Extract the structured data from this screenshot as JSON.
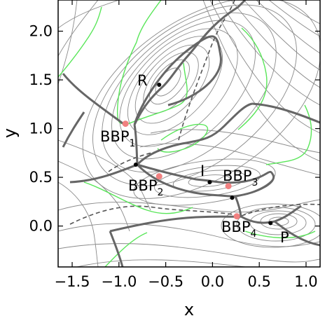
{
  "chart_data": {
    "type": "contour",
    "xlabel": "x",
    "ylabel": "y",
    "xlim": [
      -1.65,
      1.15
    ],
    "ylim": [
      -0.42,
      2.32
    ],
    "x_ticks": [
      "−1.5",
      "−1.0",
      "−0.5",
      "0.0",
      "0.5",
      "1.0"
    ],
    "x_tick_values": [
      -1.5,
      -1.0,
      -0.5,
      0.0,
      0.5,
      1.0
    ],
    "y_ticks": [
      "0.0",
      "0.5",
      "1.0",
      "1.5",
      "2.0"
    ],
    "y_tick_values": [
      0.0,
      0.5,
      1.0,
      1.5,
      2.0
    ],
    "colors": {
      "contour": "#8a8a8a",
      "thick_path": "#666666",
      "dashed_curve": "#555555",
      "green_curve": "#59e659",
      "stationary_point": "#000000",
      "bbp_point": "#f08080"
    },
    "black_points": [
      {
        "label": "R",
        "x": -0.57,
        "y": 1.45
      },
      {
        "label": "I",
        "x": -0.03,
        "y": 0.45
      },
      {
        "label": "P",
        "x": 0.62,
        "y": 0.03
      },
      {
        "label": "",
        "x": -0.82,
        "y": 0.63
      },
      {
        "label": "",
        "x": 0.21,
        "y": 0.29
      }
    ],
    "bbp_points": [
      {
        "label_main": "BBP",
        "label_sub": "1",
        "x": -0.93,
        "y": 1.05
      },
      {
        "label_main": "BBP",
        "label_sub": "2",
        "x": -0.57,
        "y": 0.51
      },
      {
        "label_main": "BBP",
        "label_sub": "3",
        "x": 0.17,
        "y": 0.41
      },
      {
        "label_main": "BBP",
        "label_sub": "4",
        "x": 0.26,
        "y": 0.1
      }
    ]
  }
}
